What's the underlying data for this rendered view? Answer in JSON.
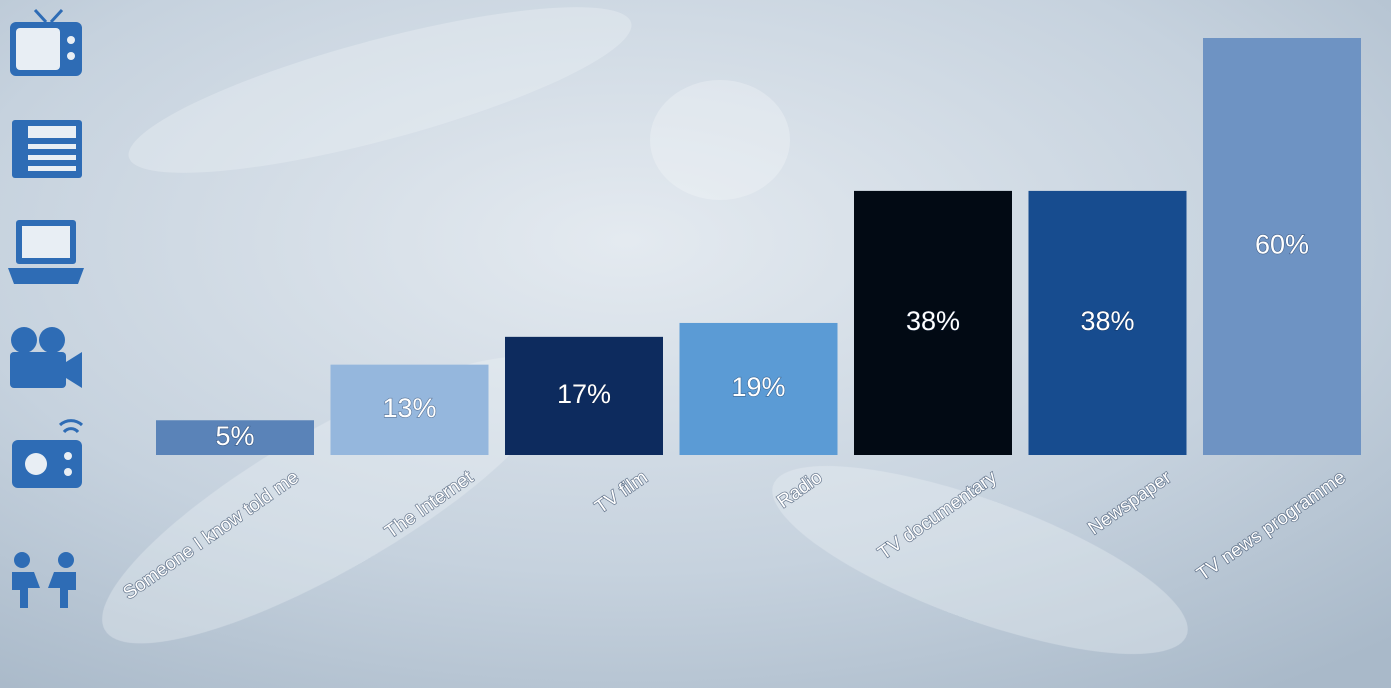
{
  "chart_data": {
    "type": "bar",
    "categories": [
      "Someone I know told me",
      "The Internet",
      "TV film",
      "Radio",
      "TV documentary",
      "Newspaper",
      "TV news programme"
    ],
    "values": [
      5,
      13,
      17,
      19,
      38,
      38,
      60
    ],
    "value_labels": [
      "5%",
      "13%",
      "17%",
      "19%",
      "38%",
      "38%",
      "60%"
    ],
    "colors": [
      "#5a83b8",
      "#95b7dd",
      "#0d2b5e",
      "#5b9bd5",
      "#020a14",
      "#174c8f",
      "#6e93c3"
    ]
  }
}
